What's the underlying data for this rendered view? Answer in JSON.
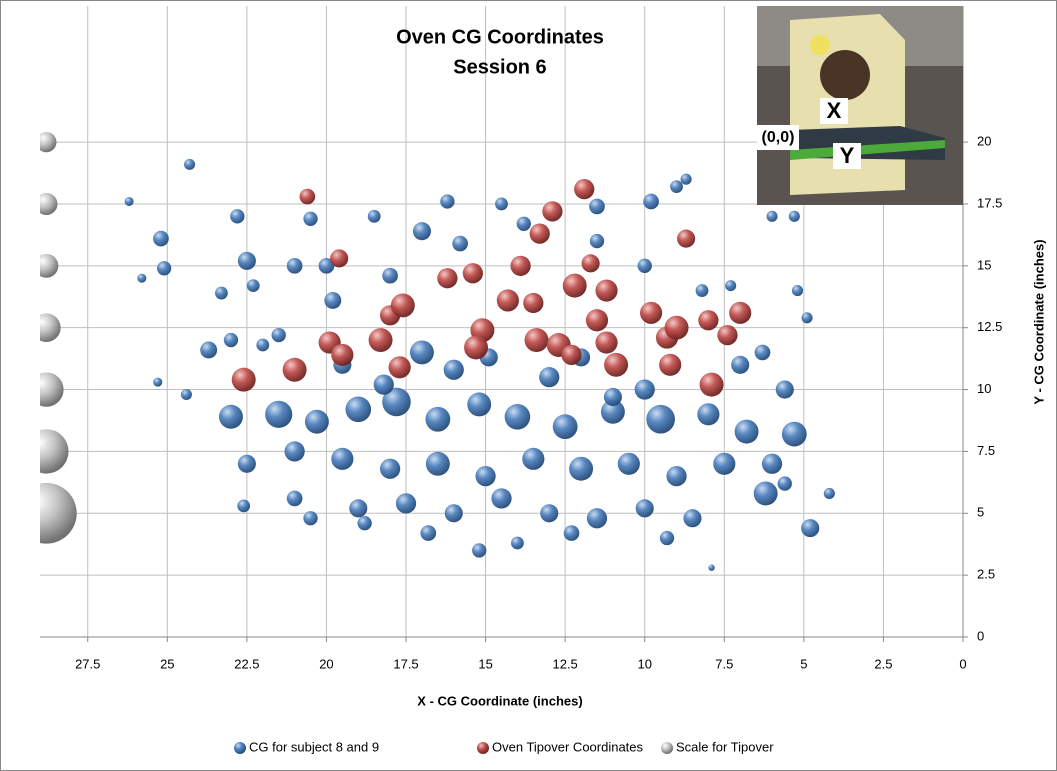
{
  "chart_data": {
    "type": "bubble",
    "title": "Oven CG Coordinates",
    "subtitle": "Session 6",
    "x_label": "X - CG Coordinate (inches)",
    "y_label": "Y - CG Coordinate (inches)",
    "xlim": [
      29,
      0
    ],
    "ylim": [
      0,
      25.5
    ],
    "xticks": [
      27.5,
      25,
      22.5,
      20,
      17.5,
      15,
      12.5,
      10,
      7.5,
      5,
      2.5,
      0
    ],
    "yticks": [
      0,
      2.5,
      5,
      7.5,
      10,
      12.5,
      15,
      17.5,
      20
    ],
    "grid": true,
    "legend": "bottom",
    "inset_labels": [
      "X",
      "(0,0)",
      "Y"
    ],
    "series": [
      {
        "name": "CG for subject 8 and 9",
        "color": "#4f81bd",
        "x": [
          26.2,
          25.2,
          25.1,
          24.3,
          23.3,
          22.8,
          22.5,
          22.3,
          21.0,
          20.5,
          20.0,
          19.8,
          18.5,
          18.0,
          17.0,
          16.2,
          15.8,
          14.5,
          13.8,
          11.5,
          9.8,
          9.0,
          8.7,
          25.8,
          23.0,
          23.7,
          24.4,
          25.3,
          6.0,
          5.3,
          5.2,
          4.9,
          7.3,
          8.2,
          10.0,
          11.5,
          14.9,
          21.5,
          22.0,
          23.0,
          21.5,
          20.3,
          19.0,
          17.8,
          16.5,
          15.2,
          14.0,
          12.5,
          11.0,
          9.5,
          8.0,
          6.8,
          5.3,
          22.5,
          21.0,
          19.5,
          18.0,
          16.5,
          15.0,
          13.5,
          12.0,
          10.5,
          9.0,
          7.5,
          6.0,
          21.0,
          19.0,
          17.5,
          16.0,
          14.5,
          13.0,
          11.5,
          10.0,
          8.5,
          6.2,
          4.8,
          20.5,
          18.8,
          16.8,
          15.2,
          14.0,
          12.3,
          9.3,
          7.9,
          22.6,
          19.5,
          17.0,
          13.0,
          10.0,
          7.0,
          6.3,
          18.2,
          12.0,
          11.0,
          16.0,
          5.6,
          4.2,
          5.6
        ],
        "values": [
          17.6,
          16.1,
          14.9,
          19.1,
          13.9,
          17.0,
          15.2,
          14.2,
          15.0,
          16.9,
          15.0,
          13.6,
          17.0,
          14.6,
          16.4,
          17.6,
          15.9,
          17.5,
          16.7,
          17.4,
          17.6,
          18.2,
          18.5,
          14.5,
          12.0,
          11.6,
          9.8,
          10.3,
          17.0,
          17.0,
          14.0,
          12.9,
          14.2,
          14.0,
          15.0,
          16.0,
          11.3,
          12.2,
          11.8,
          8.9,
          9.0,
          8.7,
          9.2,
          9.5,
          8.8,
          9.4,
          8.9,
          8.5,
          9.1,
          8.8,
          9.0,
          8.3,
          8.2,
          7.0,
          7.5,
          7.2,
          6.8,
          7.0,
          6.5,
          7.2,
          6.8,
          7.0,
          6.5,
          7.0,
          7.0,
          5.6,
          5.2,
          5.4,
          5.0,
          5.6,
          5.0,
          4.8,
          5.2,
          4.8,
          5.8,
          4.4,
          4.8,
          4.6,
          4.2,
          3.5,
          3.8,
          4.2,
          4.0,
          2.8,
          5.3,
          11.0,
          11.5,
          10.5,
          10.0,
          11.0,
          11.5,
          10.2,
          11.3,
          9.7,
          10.8,
          10.0,
          5.8,
          6.2
        ],
        "sizes": [
          2,
          6,
          5,
          3,
          4,
          5,
          8,
          4,
          6,
          5,
          6,
          7,
          4,
          6,
          8,
          5,
          6,
          4,
          5,
          6,
          6,
          4,
          3,
          2,
          5,
          7,
          3,
          2,
          3,
          3,
          3,
          3,
          3,
          4,
          5,
          5,
          8,
          5,
          4,
          14,
          18,
          14,
          16,
          20,
          15,
          14,
          16,
          15,
          14,
          20,
          12,
          14,
          15,
          8,
          10,
          12,
          10,
          14,
          10,
          12,
          14,
          12,
          10,
          12,
          10,
          6,
          8,
          10,
          8,
          10,
          8,
          10,
          8,
          8,
          14,
          8,
          5,
          5,
          6,
          5,
          4,
          6,
          5,
          1,
          4,
          8,
          14,
          10,
          10,
          8,
          6,
          10,
          8,
          8,
          10,
          8,
          3,
          5
        ]
      },
      {
        "name": "Oven Tipover Coordinates",
        "color": "#c0504d",
        "x": [
          22.6,
          21.0,
          20.6,
          19.6,
          19.9,
          19.5,
          18.3,
          18.0,
          17.6,
          17.7,
          16.2,
          15.4,
          15.1,
          15.3,
          14.3,
          13.9,
          13.5,
          13.3,
          12.9,
          13.4,
          12.7,
          12.2,
          11.7,
          11.2,
          11.5,
          11.9,
          10.9,
          11.2,
          9.8,
          9.3,
          9.0,
          9.2,
          8.7,
          8.0,
          7.4,
          7.0,
          7.9,
          12.3
        ],
        "values": [
          10.4,
          10.8,
          17.8,
          15.3,
          11.9,
          11.4,
          12.0,
          13.0,
          13.4,
          10.9,
          14.5,
          14.7,
          12.4,
          11.7,
          13.6,
          15.0,
          13.5,
          16.3,
          17.2,
          12.0,
          11.8,
          14.2,
          15.1,
          14.0,
          12.8,
          18.1,
          11.0,
          11.9,
          13.1,
          12.1,
          12.5,
          11.0,
          16.1,
          12.8,
          12.2,
          13.1,
          10.2,
          11.4
        ],
        "sizes": [
          14,
          14,
          6,
          8,
          12,
          12,
          14,
          10,
          14,
          12,
          10,
          10,
          14,
          14,
          12,
          10,
          10,
          10,
          10,
          14,
          14,
          14,
          8,
          12,
          12,
          10,
          14,
          12,
          12,
          12,
          14,
          12,
          8,
          10,
          10,
          12,
          14,
          10
        ]
      },
      {
        "name": "Scale for Tipover",
        "color": "#bfbfbf",
        "x": [
          28.8,
          28.8,
          28.8,
          28.8,
          28.8,
          28.8,
          28.8
        ],
        "values": [
          5,
          7.5,
          10,
          12.5,
          15,
          17.5,
          20
        ],
        "sizes": [
          90,
          48,
          29,
          20,
          14,
          12,
          10
        ]
      }
    ]
  }
}
